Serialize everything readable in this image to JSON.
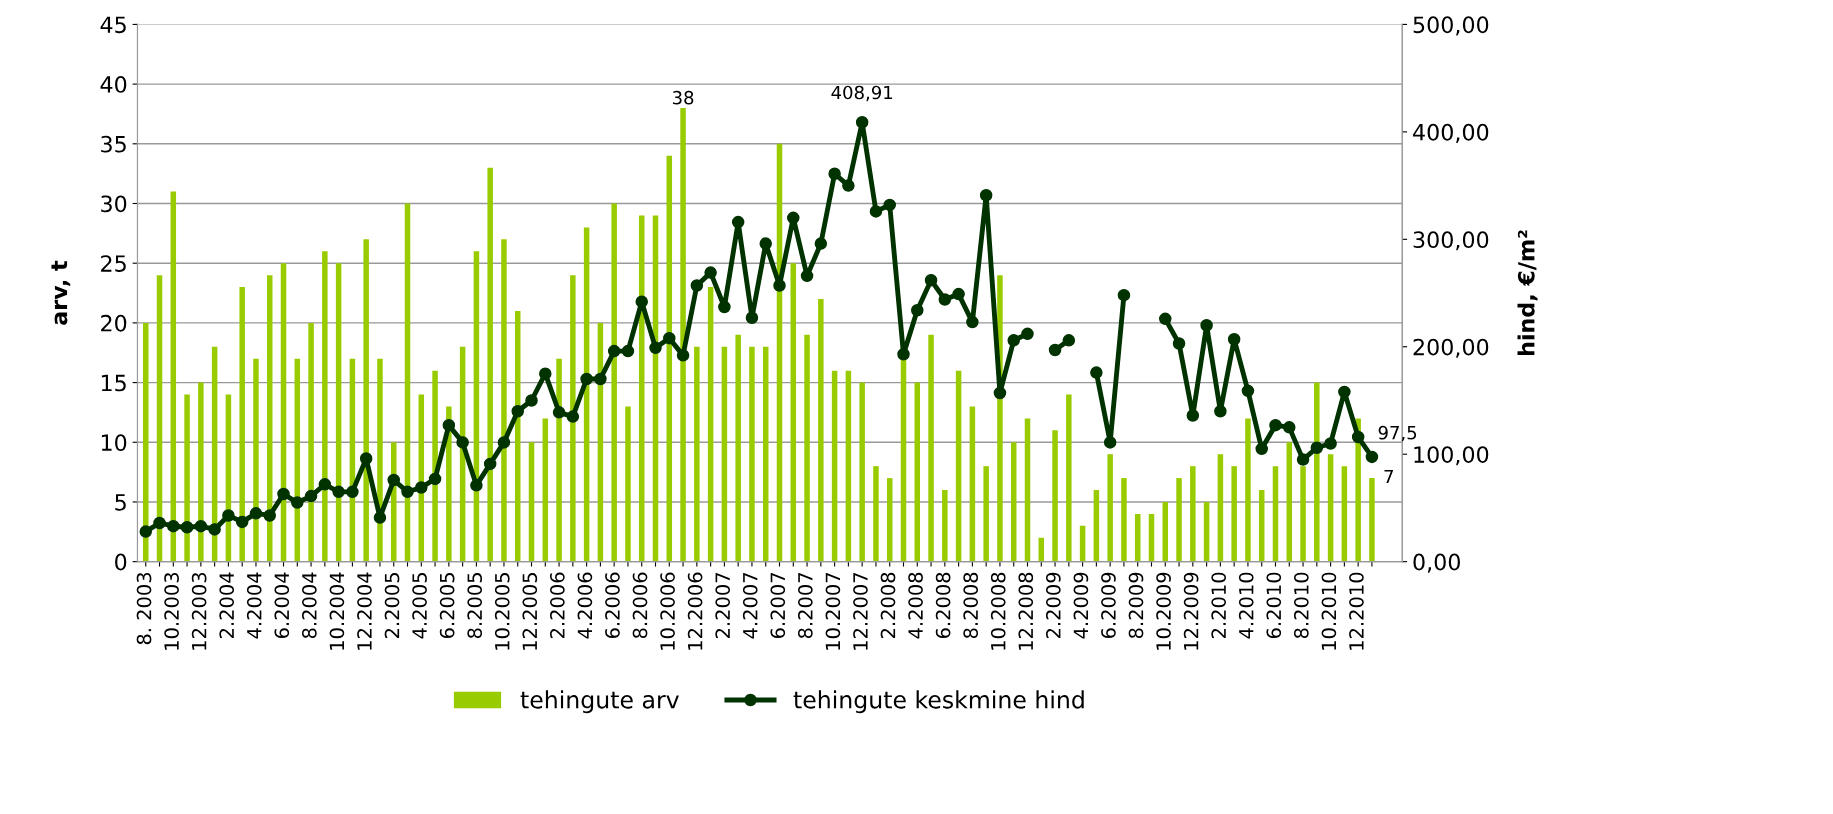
{
  "chart_data": {
    "type": "bar",
    "ylabel": "arv, t",
    "y2label": "hind, €/m²",
    "categories": [
      "8. 2003",
      null,
      "10.2003",
      null,
      "12.2003",
      null,
      "2.2004",
      null,
      "4.2004",
      null,
      "6.2004",
      null,
      "8.2004",
      null,
      "10.2004",
      null,
      "12.2004",
      null,
      "2.2005",
      null,
      "4.2005",
      null,
      "6.2005",
      null,
      "8.2005",
      null,
      "10.2005",
      null,
      "12.2005",
      null,
      "2.2006",
      null,
      "4.2006",
      null,
      "6.2006",
      null,
      "8.2006",
      null,
      "10.2006",
      null,
      "12.2006",
      null,
      "2.2007",
      null,
      "4.2007",
      null,
      "6.2007",
      null,
      "8.2007",
      null,
      "10.2007",
      null,
      "12.2007",
      null,
      "2.2008",
      null,
      "4.2008",
      null,
      "6.2008",
      null,
      "8.2008",
      null,
      "10.2008",
      null,
      "12.2008",
      null,
      "2.2009",
      null,
      "4.2009",
      null,
      "6.2009",
      null,
      "8.2009",
      null,
      "10.2009",
      null,
      "12.2009",
      null,
      "2.2010",
      null,
      "4.2010",
      null,
      "6.2010",
      null,
      "8.2010",
      null,
      "10.2010",
      null,
      "12.2010",
      null
    ],
    "series": [
      {
        "name": "tehingute arv",
        "color": "#99cc00",
        "values": [
          20,
          24,
          31,
          14,
          15,
          18,
          14,
          23,
          17,
          24,
          25,
          17,
          20,
          26,
          25,
          17,
          27,
          17,
          10,
          30,
          14,
          16,
          13,
          18,
          26,
          33,
          27,
          21,
          10,
          12,
          17,
          24,
          28,
          20,
          30,
          13,
          29,
          29,
          34,
          38,
          18,
          23,
          18,
          19,
          18,
          18,
          35,
          25,
          19,
          22,
          16,
          16,
          15,
          8,
          7,
          18,
          15,
          19,
          6,
          16,
          13,
          8,
          24,
          10,
          12,
          2,
          11,
          14,
          3,
          6,
          9,
          7,
          4,
          4,
          5,
          7,
          8,
          5,
          9,
          8,
          12,
          6,
          8,
          10,
          8,
          15,
          9,
          8,
          12,
          7
        ],
        "value_labels": [
          null,
          null,
          null,
          null,
          null,
          null,
          null,
          null,
          null,
          null,
          null,
          null,
          null,
          null,
          null,
          null,
          null,
          null,
          null,
          null,
          null,
          null,
          null,
          null,
          null,
          null,
          null,
          null,
          null,
          null,
          null,
          null,
          null,
          null,
          null,
          null,
          null,
          null,
          null,
          "38",
          null,
          null,
          null,
          null,
          null,
          null,
          null,
          null,
          null,
          null,
          null,
          null,
          null,
          null,
          null,
          null,
          null,
          null,
          null,
          null,
          null,
          null,
          null,
          null,
          null,
          null,
          null,
          null,
          null,
          null,
          null,
          null,
          null,
          null,
          null,
          null,
          null,
          null,
          null,
          null,
          null,
          null,
          null,
          null,
          null,
          null,
          null,
          null,
          null,
          "7"
        ]
      },
      {
        "name": "tehingute keskmine hind",
        "type": "line",
        "axis": "y2",
        "color": "#003300",
        "marker": "circle",
        "line_style": "solid",
        "values": [
          28,
          36,
          33,
          32,
          33,
          30,
          43,
          37,
          45,
          43,
          63,
          55,
          61,
          72,
          65,
          65,
          96,
          41,
          76,
          65,
          69,
          77,
          127,
          111,
          71,
          91,
          111,
          140,
          150,
          175,
          139,
          135,
          170,
          170,
          196,
          196,
          242,
          199,
          208,
          192,
          257,
          269,
          237,
          316,
          227,
          296,
          257,
          320,
          266,
          296,
          361,
          350,
          408.91,
          326,
          332,
          193,
          234,
          262,
          244,
          249,
          223,
          341,
          157,
          206,
          212,
          null,
          197,
          206,
          null,
          176,
          111,
          248,
          null,
          null,
          226,
          203,
          136,
          220,
          140,
          207,
          159,
          105,
          127,
          125,
          95,
          106,
          110,
          158,
          116,
          97.5
        ],
        "value_labels": [
          null,
          null,
          null,
          null,
          null,
          null,
          null,
          null,
          null,
          null,
          null,
          null,
          null,
          null,
          null,
          null,
          null,
          null,
          null,
          null,
          null,
          null,
          null,
          null,
          null,
          null,
          null,
          null,
          null,
          null,
          null,
          null,
          null,
          null,
          null,
          null,
          null,
          null,
          null,
          null,
          null,
          null,
          null,
          null,
          null,
          null,
          null,
          null,
          null,
          null,
          null,
          null,
          "408,91",
          null,
          null,
          null,
          null,
          null,
          null,
          null,
          null,
          null,
          null,
          null,
          null,
          null,
          null,
          null,
          null,
          null,
          null,
          null,
          null,
          null,
          null,
          null,
          null,
          null,
          null,
          null,
          null,
          null,
          null,
          null,
          null,
          null,
          null,
          null,
          null,
          "97,5"
        ]
      }
    ],
    "ylim": [
      0,
      45
    ],
    "yticks": [
      0,
      5,
      10,
      15,
      20,
      25,
      30,
      35,
      40,
      45
    ],
    "y2lim": [
      0,
      500
    ],
    "y2ticks": [
      {
        "value": 0,
        "label": "0,00"
      },
      {
        "value": 100,
        "label": "100,00"
      },
      {
        "value": 200,
        "label": "200,00"
      },
      {
        "value": 300,
        "label": "300,00"
      },
      {
        "value": 400,
        "label": "400,00"
      },
      {
        "value": 500,
        "label": "500,00"
      }
    ],
    "grid": "y",
    "legend": "bottom"
  }
}
